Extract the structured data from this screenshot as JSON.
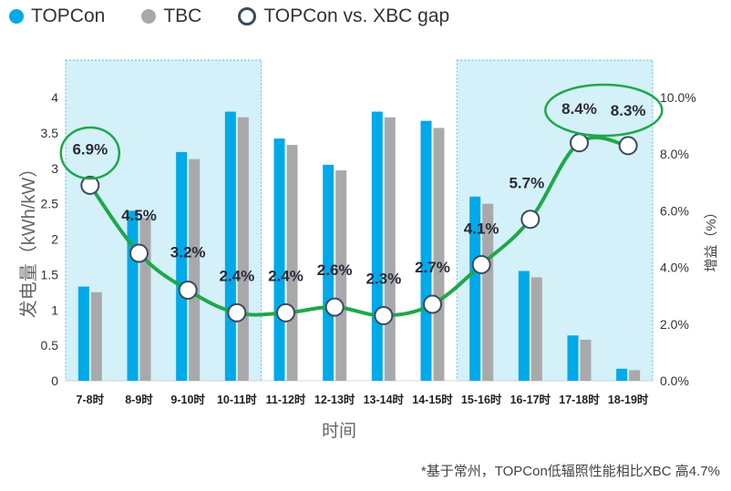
{
  "legend": {
    "topcon_label": "TOPCon",
    "tbc_label": "TBC",
    "gap_label": "TOPCon  vs. XBC gap",
    "topcon_color": "#00a9e8",
    "tbc_color": "#a9a9ab",
    "gap_color": "#1ea84a"
  },
  "note": "*基于常州，TOPCon低辐照性能相比XBC 高4.7%",
  "chart_data": {
    "type": "bar",
    "categories": [
      "7-8时",
      "8-9时",
      "9-10时",
      "10-11时",
      "11-12时",
      "12-13时",
      "13-14时",
      "14-15时",
      "15-16时",
      "16-17时",
      "17-18时",
      "18-19时"
    ],
    "series": [
      {
        "name": "TOPCon",
        "values": [
          1.33,
          2.4,
          3.23,
          3.8,
          3.42,
          3.05,
          3.8,
          3.67,
          2.6,
          1.55,
          0.64,
          0.17
        ]
      },
      {
        "name": "TBC",
        "values": [
          1.25,
          2.3,
          3.13,
          3.72,
          3.33,
          2.97,
          3.72,
          3.57,
          2.5,
          1.46,
          0.58,
          0.15
        ]
      }
    ],
    "gap_series": {
      "name": "TOPCon  vs. XBC gap",
      "values": [
        6.9,
        4.5,
        3.2,
        2.4,
        2.4,
        2.6,
        2.3,
        2.7,
        4.1,
        5.7,
        8.4,
        8.3
      ],
      "labels": [
        "6.9%",
        "4.5%",
        "3.2%",
        "2.4%",
        "2.4%",
        "2.6%",
        "2.3%",
        "2.7%",
        "4.1%",
        "5.7%",
        "8.4%",
        "8.3%"
      ]
    },
    "xlabel": "时间",
    "ylabel": "发电量（kWh/kW）",
    "y2label": "增益（%）",
    "ylim": [
      0,
      4
    ],
    "yticks": [
      "0",
      "0.5",
      "1",
      "1.5",
      "2",
      "2.5",
      "3",
      "3.5",
      "4"
    ],
    "y2lim": [
      0,
      10
    ],
    "y2ticks": [
      "0.0%",
      "2.0%",
      "4.0%",
      "6.0%",
      "8.0%",
      "10.0%"
    ],
    "highlight_ranges": [
      [
        0,
        3
      ],
      [
        8,
        11
      ]
    ],
    "highlight_color": "#d4f0f8",
    "circled_labels": [
      0,
      10,
      11
    ]
  }
}
